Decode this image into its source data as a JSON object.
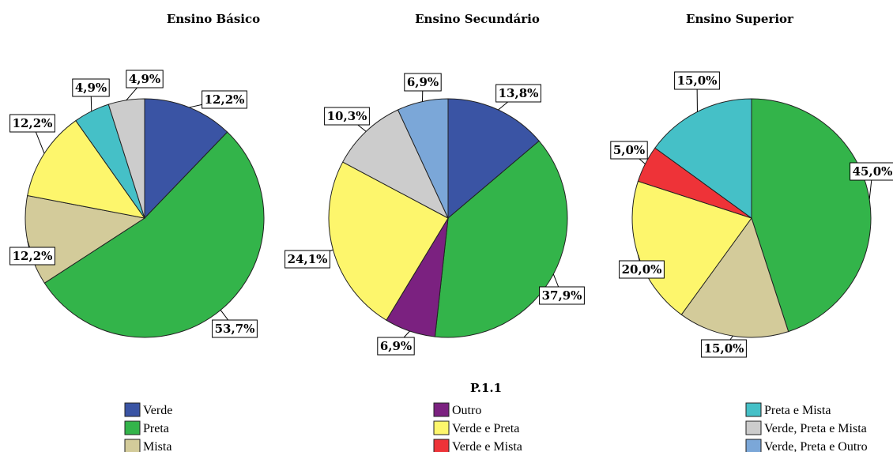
{
  "chart_data": [
    {
      "type": "pie",
      "title": "Ensino Básico",
      "slices": [
        {
          "category": "Verde",
          "value": 12.2,
          "label": "12,2%"
        },
        {
          "category": "Preta",
          "value": 53.7,
          "label": "53,7%"
        },
        {
          "category": "Mista",
          "value": 12.2,
          "label": "12,2%"
        },
        {
          "category": "Verde e Preta",
          "value": 12.2,
          "label": "12,2%"
        },
        {
          "category": "Preta e Mista",
          "value": 4.9,
          "label": "4,9%"
        },
        {
          "category": "Verde, Preta e Mista",
          "value": 4.9,
          "label": "4,9%"
        }
      ]
    },
    {
      "type": "pie",
      "title": "Ensino Secundário",
      "slices": [
        {
          "category": "Verde",
          "value": 13.8,
          "label": "13,8%"
        },
        {
          "category": "Preta",
          "value": 37.9,
          "label": "37,9%"
        },
        {
          "category": "Outro",
          "value": 6.9,
          "label": "6,9%"
        },
        {
          "category": "Verde e Preta",
          "value": 24.1,
          "label": "24,1%"
        },
        {
          "category": "Verde, Preta e Mista",
          "value": 10.3,
          "label": "10,3%"
        },
        {
          "category": "Verde, Preta e Outro",
          "value": 6.9,
          "label": "6,9%"
        }
      ]
    },
    {
      "type": "pie",
      "title": "Ensino Superior",
      "slices": [
        {
          "category": "Preta",
          "value": 45.0,
          "label": "45,0%"
        },
        {
          "category": "Mista",
          "value": 15.0,
          "label": "15,0%"
        },
        {
          "category": "Verde e Preta",
          "value": 20.0,
          "label": "20,0%"
        },
        {
          "category": "Verde e Mista",
          "value": 5.0,
          "label": "5,0%"
        },
        {
          "category": "Preta e Mista",
          "value": 15.0,
          "label": "15,0%"
        }
      ]
    }
  ],
  "legend": {
    "title": "P.1.1",
    "placement": "bottom",
    "items": [
      {
        "name": "Verde",
        "color": "#3a54a4"
      },
      {
        "name": "Preta",
        "color": "#33b44a"
      },
      {
        "name": "Mista",
        "color": "#d3cb9a"
      },
      {
        "name": "Outro",
        "color": "#7b2180"
      },
      {
        "name": "Verde e Preta",
        "color": "#fdf66c"
      },
      {
        "name": "Verde e Mista",
        "color": "#ee3338"
      },
      {
        "name": "Preta e Mista",
        "color": "#45c0c7"
      },
      {
        "name": "Verde, Preta e Mista",
        "color": "#cccccc"
      },
      {
        "name": "Verde, Preta e Outro",
        "color": "#7ba7d8"
      }
    ]
  }
}
